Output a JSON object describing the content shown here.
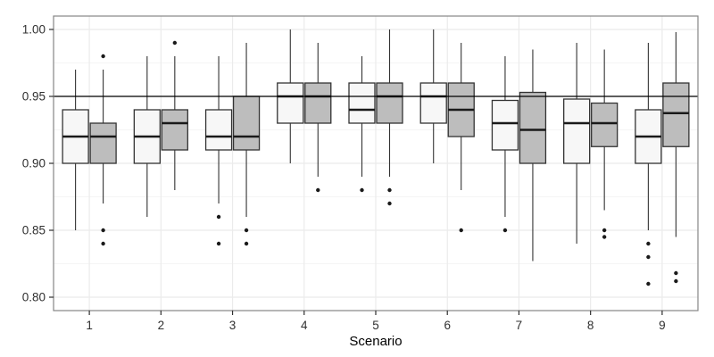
{
  "chart_data": {
    "type": "boxplot",
    "title": "",
    "xlabel": "Scenario",
    "ylabel": "",
    "categories": [
      "1",
      "2",
      "3",
      "4",
      "5",
      "6",
      "7",
      "8",
      "9"
    ],
    "ytick_labels": [
      "0.80",
      "0.85",
      "0.90",
      "0.95",
      "1.00"
    ],
    "yticks": [
      0.8,
      0.85,
      0.9,
      0.95,
      1.0
    ],
    "minor_yticks": [
      0.825,
      0.875,
      0.925,
      0.975
    ],
    "ylim": [
      0.79,
      1.01
    ],
    "reference_line_y": 0.95,
    "grid": "major-and-minor-horizontal, major-vertical-at-categories",
    "legend": "none",
    "colors": {
      "light_fill": "#f7f7f7",
      "dark_fill": "#bdbdbd",
      "box_stroke": "#333333",
      "median_stroke": "#1a1a1a",
      "outlier_fill": "#1a1a1a",
      "reference_line": "#000000",
      "panel_border": "#858585",
      "major_grid": "#ebebeb",
      "minor_grid": "#f5f5f5",
      "axis_text": "#303030"
    },
    "series": [
      {
        "name": "light",
        "boxes": [
          {
            "category": "1",
            "whisker_low": 0.85,
            "q1": 0.9,
            "median": 0.92,
            "q3": 0.94,
            "whisker_high": 0.97,
            "outliers": []
          },
          {
            "category": "2",
            "whisker_low": 0.86,
            "q1": 0.9,
            "median": 0.92,
            "q3": 0.94,
            "whisker_high": 0.98,
            "outliers": []
          },
          {
            "category": "3",
            "whisker_low": 0.87,
            "q1": 0.91,
            "median": 0.92,
            "q3": 0.94,
            "whisker_high": 0.98,
            "outliers": [
              0.86,
              0.84
            ]
          },
          {
            "category": "4",
            "whisker_low": 0.9,
            "q1": 0.93,
            "median": 0.95,
            "q3": 0.96,
            "whisker_high": 1.0,
            "outliers": []
          },
          {
            "category": "5",
            "whisker_low": 0.89,
            "q1": 0.93,
            "median": 0.94,
            "q3": 0.96,
            "whisker_high": 0.98,
            "outliers": [
              0.88
            ]
          },
          {
            "category": "6",
            "whisker_low": 0.9,
            "q1": 0.93,
            "median": 0.95,
            "q3": 0.96,
            "whisker_high": 1.0,
            "outliers": []
          },
          {
            "category": "7",
            "whisker_low": 0.86,
            "q1": 0.91,
            "median": 0.93,
            "q3": 0.947,
            "whisker_high": 0.98,
            "outliers": [
              0.85
            ]
          },
          {
            "category": "8",
            "whisker_low": 0.84,
            "q1": 0.9,
            "median": 0.93,
            "q3": 0.948,
            "whisker_high": 0.99,
            "outliers": []
          },
          {
            "category": "9",
            "whisker_low": 0.85,
            "q1": 0.9,
            "median": 0.92,
            "q3": 0.94,
            "whisker_high": 0.99,
            "outliers": [
              0.84,
              0.83,
              0.81
            ]
          }
        ]
      },
      {
        "name": "dark",
        "boxes": [
          {
            "category": "1",
            "whisker_low": 0.87,
            "q1": 0.9,
            "median": 0.92,
            "q3": 0.93,
            "whisker_high": 0.97,
            "outliers": [
              0.98,
              0.85,
              0.84
            ]
          },
          {
            "category": "2",
            "whisker_low": 0.88,
            "q1": 0.91,
            "median": 0.93,
            "q3": 0.94,
            "whisker_high": 0.98,
            "outliers": [
              0.99
            ]
          },
          {
            "category": "3",
            "whisker_low": 0.86,
            "q1": 0.91,
            "median": 0.92,
            "q3": 0.95,
            "whisker_high": 0.99,
            "outliers": [
              0.85,
              0.84
            ]
          },
          {
            "category": "4",
            "whisker_low": 0.89,
            "q1": 0.93,
            "median": 0.95,
            "q3": 0.96,
            "whisker_high": 0.99,
            "outliers": [
              0.88
            ]
          },
          {
            "category": "5",
            "whisker_low": 0.89,
            "q1": 0.93,
            "median": 0.95,
            "q3": 0.96,
            "whisker_high": 1.0,
            "outliers": [
              0.88,
              0.87
            ]
          },
          {
            "category": "6",
            "whisker_low": 0.88,
            "q1": 0.92,
            "median": 0.94,
            "q3": 0.96,
            "whisker_high": 0.99,
            "outliers": [
              0.85
            ]
          },
          {
            "category": "7",
            "whisker_low": 0.827,
            "q1": 0.9,
            "median": 0.925,
            "q3": 0.953,
            "whisker_high": 0.985,
            "outliers": []
          },
          {
            "category": "8",
            "whisker_low": 0.865,
            "q1": 0.9125,
            "median": 0.93,
            "q3": 0.945,
            "whisker_high": 0.985,
            "outliers": [
              0.85,
              0.845
            ]
          },
          {
            "category": "9",
            "whisker_low": 0.845,
            "q1": 0.9125,
            "median": 0.9375,
            "q3": 0.96,
            "whisker_high": 0.998,
            "outliers": [
              0.818,
              0.812
            ]
          }
        ]
      }
    ]
  }
}
